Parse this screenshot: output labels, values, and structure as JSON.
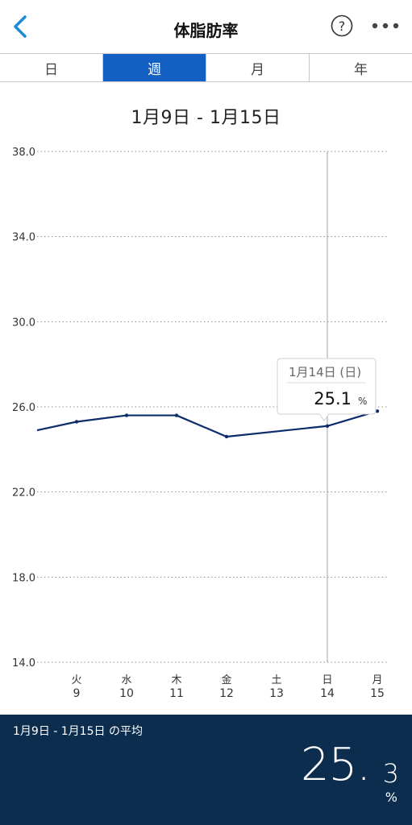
{
  "header": {
    "title": "体脂肪率",
    "help_symbol": "?",
    "back_icon": "chevron-left-icon",
    "more_icon": "ellipsis-icon",
    "accent_color": "#1b8bd6"
  },
  "tabs": [
    {
      "label": "日",
      "active": false
    },
    {
      "label": "週",
      "active": true
    },
    {
      "label": "月",
      "active": false
    },
    {
      "label": "年",
      "active": false
    }
  ],
  "date_range": "1月9日 - 1月15日",
  "tooltip": {
    "date": "1月14日 (日)",
    "value": "25.1",
    "unit": "%"
  },
  "chart_data": {
    "type": "line",
    "y_ticks": [
      "38.0",
      "34.0",
      "30.0",
      "26.0",
      "22.0",
      "18.0",
      "14.0"
    ],
    "ylim": [
      14.0,
      38.0
    ],
    "x_categories": [
      {
        "day": "",
        "date": ""
      },
      {
        "day": "火",
        "date": "9"
      },
      {
        "day": "水",
        "date": "10"
      },
      {
        "day": "木",
        "date": "11"
      },
      {
        "day": "金",
        "date": "12"
      },
      {
        "day": "土",
        "date": "13"
      },
      {
        "day": "日",
        "date": "14"
      },
      {
        "day": "月",
        "date": "15"
      }
    ],
    "series": [
      {
        "values": [
          24.9,
          25.3,
          25.6,
          25.6,
          24.6,
          null,
          25.1,
          25.8
        ]
      }
    ],
    "selected_index": 6,
    "line_color": "#0c2d6b",
    "grid": true
  },
  "footer": {
    "label": "1月9日 - 1月15日 の平均",
    "avg_int": "25.",
    "avg_dec": "3",
    "unit": "%",
    "background_color": "#0c2d4e"
  }
}
